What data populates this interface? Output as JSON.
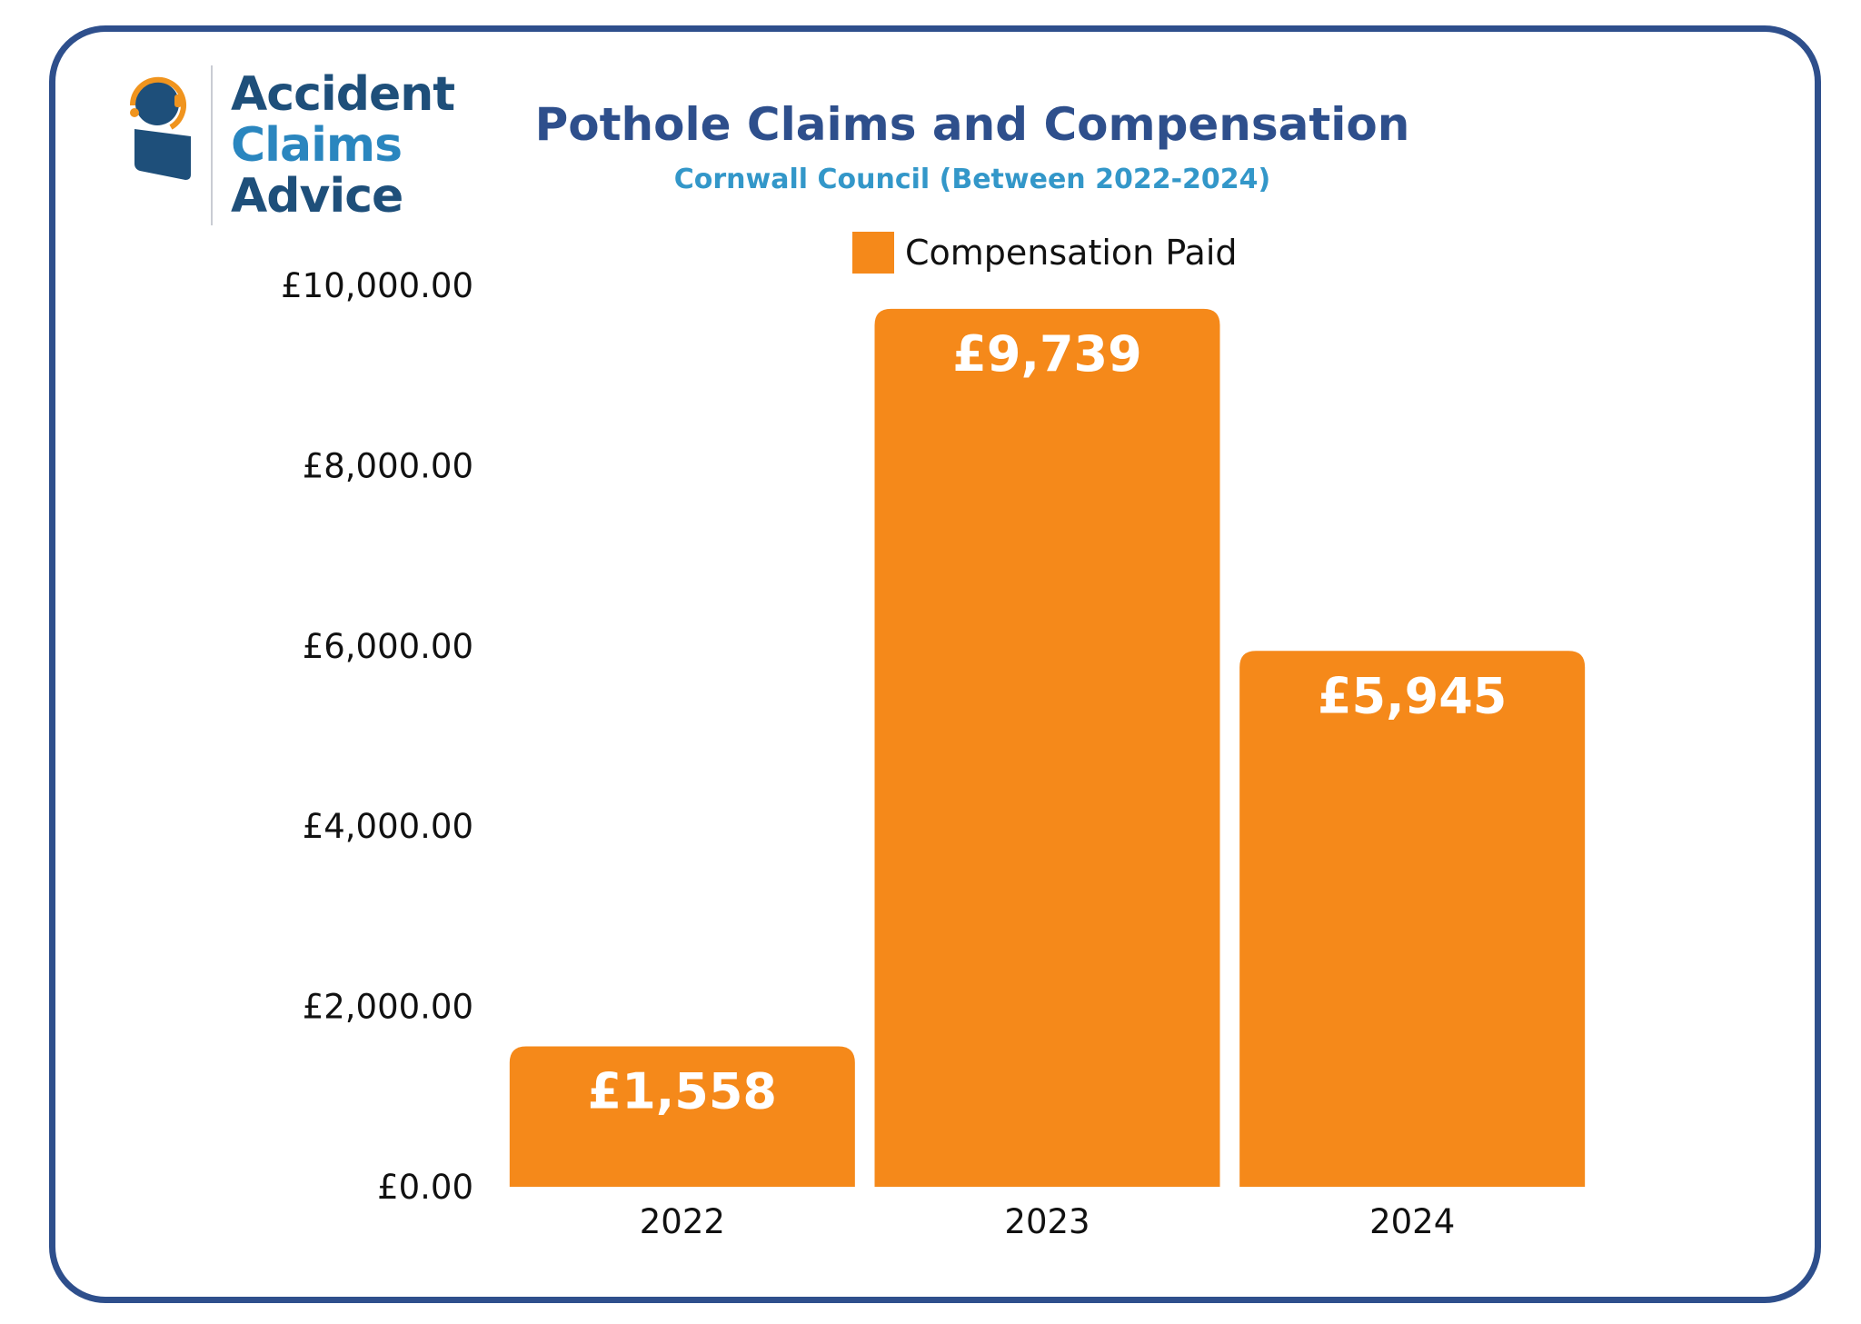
{
  "brand": {
    "line1": "Accident",
    "line2": "Claims",
    "line3": "Advice"
  },
  "colors": {
    "frame": "#2e4f8c",
    "title": "#2e4f8c",
    "subtitle": "#3397c9",
    "bar": "#f5891a",
    "logo_dark": "#1e4f7a",
    "logo_orange": "#f0941e"
  },
  "chart_data": {
    "type": "bar",
    "title": "Pothole Claims and Compensation",
    "subtitle": "Cornwall Council (Between 2022-2024)",
    "xlabel": "",
    "ylabel": "",
    "categories": [
      "2022",
      "2023",
      "2024"
    ],
    "series": [
      {
        "name": "Compensation Paid",
        "values": [
          1558,
          9739,
          5945
        ],
        "data_labels": [
          "£1,558",
          "£9,739",
          "£5,945"
        ]
      }
    ],
    "ylim": [
      0,
      10000
    ],
    "yticks": [
      0,
      2000,
      4000,
      6000,
      8000,
      10000
    ],
    "ytick_labels": [
      "£0.00",
      "£2,000.00",
      "£4,000.00",
      "£6,000.00",
      "£8,000.00",
      "£10,000.00"
    ],
    "grid": false,
    "legend_position": "top-center"
  }
}
